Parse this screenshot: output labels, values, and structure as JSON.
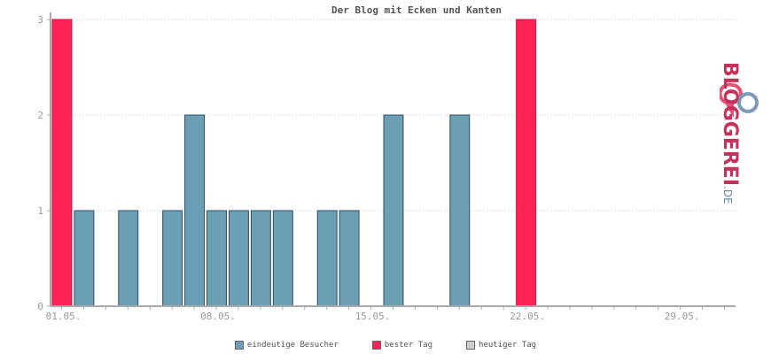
{
  "chart_data": {
    "type": "bar",
    "title": "Der Blog mit Ecken und Kanten",
    "categories": [
      "01.05.",
      "02.05.",
      "03.05.",
      "04.05.",
      "05.05.",
      "06.05.",
      "07.05.",
      "08.05.",
      "09.05.",
      "10.05.",
      "11.05.",
      "12.05.",
      "13.05.",
      "14.05.",
      "15.05.",
      "16.05.",
      "17.05.",
      "18.05.",
      "19.05.",
      "20.05.",
      "21.05.",
      "22.05.",
      "23.05.",
      "24.05.",
      "25.05.",
      "26.05.",
      "27.05.",
      "28.05.",
      "29.05.",
      "30.05.",
      "31.05."
    ],
    "x_tick_labels": [
      "01.05.",
      "08.05.",
      "15.05.",
      "22.05.",
      "29.05."
    ],
    "y_ticks": [
      0,
      1,
      2,
      3
    ],
    "ylim": [
      0,
      3
    ],
    "values": [
      3,
      1,
      0,
      1,
      0,
      1,
      2,
      1,
      1,
      1,
      1,
      0,
      1,
      1,
      0,
      2,
      0,
      0,
      2,
      0,
      0,
      3,
      0,
      0,
      0,
      0,
      0,
      0,
      0,
      0,
      0
    ],
    "best_days": [
      "01.05.",
      "22.05."
    ],
    "grid": true,
    "legend_position": "bottom"
  },
  "legend": [
    {
      "label": "eindeutige Besucher",
      "color": "#6a9fb5"
    },
    {
      "label": "bester Tag",
      "color": "#ff2255"
    },
    {
      "label": "heutiger Tag",
      "color": "#cccccc"
    }
  ],
  "colors": {
    "normal": "#6a9fb5",
    "best": "#ff2255",
    "today": "#cccccc",
    "axis": "#aaaaaa",
    "tick_text": "#999999"
  },
  "logo": {
    "main": "BLOGGEREI",
    "tld": ".DE"
  }
}
